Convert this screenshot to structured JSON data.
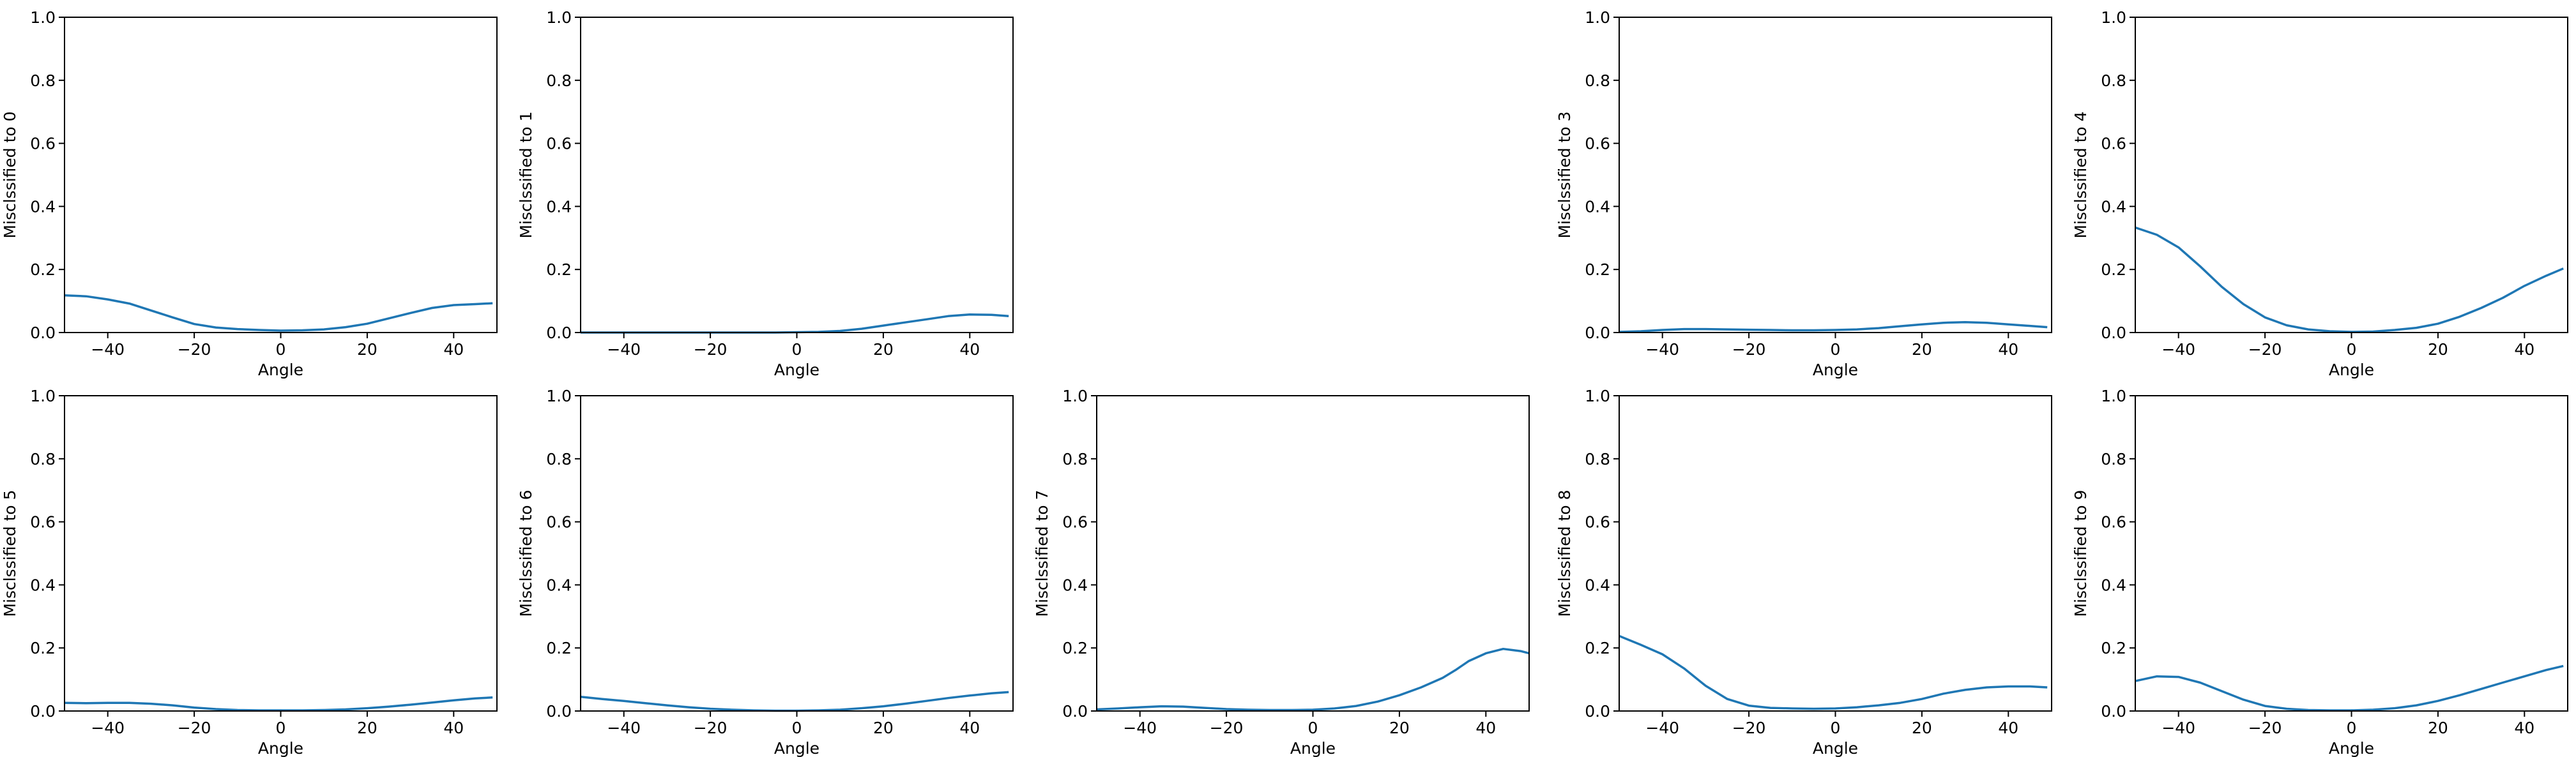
{
  "chart_data": [
    {
      "type": "line",
      "xlabel": "Angle",
      "ylabel": "Misclssified to 0",
      "xlim": [
        -50,
        50
      ],
      "ylim": [
        0,
        1
      ],
      "xticks": [
        "−40",
        "−20",
        "0",
        "20",
        "40"
      ],
      "yticks": [
        "0.0",
        "0.2",
        "0.4",
        "0.6",
        "0.8",
        "1.0"
      ],
      "series": [
        {
          "color": "#1f77b4",
          "x": [
            -50,
            -45,
            -40,
            -35,
            -30,
            -25,
            -20,
            -15,
            -10,
            -5,
            0,
            5,
            10,
            15,
            20,
            25,
            30,
            35,
            40,
            45,
            49
          ],
          "y": [
            0.118,
            0.115,
            0.105,
            0.092,
            0.07,
            0.048,
            0.027,
            0.016,
            0.011,
            0.008,
            0.006,
            0.007,
            0.01,
            0.017,
            0.028,
            0.045,
            0.062,
            0.078,
            0.087,
            0.09,
            0.093
          ]
        }
      ]
    },
    {
      "type": "line",
      "xlabel": "Angle",
      "ylabel": "Misclssified to 1",
      "xlim": [
        -50,
        50
      ],
      "ylim": [
        0,
        1
      ],
      "xticks": [
        "−40",
        "−20",
        "0",
        "20",
        "40"
      ],
      "yticks": [
        "0.0",
        "0.2",
        "0.4",
        "0.6",
        "0.8",
        "1.0"
      ],
      "series": [
        {
          "color": "#1f77b4",
          "x": [
            -50,
            -45,
            -40,
            -35,
            -30,
            -25,
            -20,
            -15,
            -10,
            -5,
            0,
            5,
            10,
            15,
            20,
            25,
            30,
            35,
            40,
            45,
            49
          ],
          "y": [
            0.0,
            0.0,
            0.0,
            0.0,
            0.0,
            0.0,
            0.0,
            0.0,
            0.0,
            0.0,
            0.001,
            0.002,
            0.005,
            0.012,
            0.022,
            0.032,
            0.042,
            0.052,
            0.057,
            0.056,
            0.052
          ]
        }
      ]
    },
    {
      "type": "line",
      "xlabel": "Angle",
      "ylabel": "Misclssified to 3",
      "xlim": [
        -50,
        50
      ],
      "ylim": [
        0,
        1
      ],
      "xticks": [
        "−40",
        "−20",
        "0",
        "20",
        "40"
      ],
      "yticks": [
        "0.0",
        "0.2",
        "0.4",
        "0.6",
        "0.8",
        "1.0"
      ],
      "series": [
        {
          "color": "#1f77b4",
          "x": [
            -50,
            -45,
            -40,
            -35,
            -30,
            -25,
            -20,
            -15,
            -10,
            -5,
            0,
            5,
            10,
            15,
            20,
            25,
            30,
            35,
            40,
            45,
            49
          ],
          "y": [
            0.002,
            0.004,
            0.008,
            0.011,
            0.011,
            0.01,
            0.009,
            0.008,
            0.007,
            0.007,
            0.008,
            0.01,
            0.014,
            0.02,
            0.026,
            0.031,
            0.033,
            0.031,
            0.026,
            0.021,
            0.017
          ]
        }
      ]
    },
    {
      "type": "line",
      "xlabel": "Angle",
      "ylabel": "Misclssified to 4",
      "xlim": [
        -50,
        50
      ],
      "ylim": [
        0,
        1
      ],
      "xticks": [
        "−40",
        "−20",
        "0",
        "20",
        "40"
      ],
      "yticks": [
        "0.0",
        "0.2",
        "0.4",
        "0.6",
        "0.8",
        "1.0"
      ],
      "series": [
        {
          "color": "#1f77b4",
          "x": [
            -50,
            -45,
            -40,
            -35,
            -30,
            -25,
            -20,
            -15,
            -10,
            -5,
            0,
            5,
            10,
            15,
            20,
            25,
            30,
            35,
            40,
            45,
            49
          ],
          "y": [
            0.333,
            0.31,
            0.27,
            0.21,
            0.145,
            0.09,
            0.048,
            0.023,
            0.01,
            0.004,
            0.002,
            0.003,
            0.008,
            0.015,
            0.028,
            0.05,
            0.078,
            0.11,
            0.148,
            0.18,
            0.203
          ]
        }
      ]
    },
    {
      "type": "line",
      "xlabel": "Angle",
      "ylabel": "Misclssified to 5",
      "xlim": [
        -50,
        50
      ],
      "ylim": [
        0,
        1
      ],
      "xticks": [
        "−40",
        "−20",
        "0",
        "20",
        "40"
      ],
      "yticks": [
        "0.0",
        "0.2",
        "0.4",
        "0.6",
        "0.8",
        "1.0"
      ],
      "series": [
        {
          "color": "#1f77b4",
          "x": [
            -50,
            -45,
            -40,
            -35,
            -30,
            -25,
            -20,
            -15,
            -10,
            -5,
            0,
            5,
            10,
            15,
            20,
            25,
            30,
            35,
            40,
            45,
            49
          ],
          "y": [
            0.026,
            0.025,
            0.026,
            0.026,
            0.023,
            0.018,
            0.011,
            0.006,
            0.003,
            0.002,
            0.002,
            0.002,
            0.003,
            0.005,
            0.009,
            0.014,
            0.02,
            0.027,
            0.034,
            0.04,
            0.043
          ]
        }
      ]
    },
    {
      "type": "line",
      "xlabel": "Angle",
      "ylabel": "Misclssified to 6",
      "xlim": [
        -50,
        50
      ],
      "ylim": [
        0,
        1
      ],
      "xticks": [
        "−40",
        "−20",
        "0",
        "20",
        "40"
      ],
      "yticks": [
        "0.0",
        "0.2",
        "0.4",
        "0.6",
        "0.8",
        "1.0"
      ],
      "series": [
        {
          "color": "#1f77b4",
          "x": [
            -50,
            -45,
            -40,
            -35,
            -30,
            -25,
            -20,
            -15,
            -10,
            -5,
            0,
            5,
            10,
            15,
            20,
            25,
            30,
            35,
            40,
            45,
            49
          ],
          "y": [
            0.045,
            0.038,
            0.032,
            0.025,
            0.018,
            0.012,
            0.007,
            0.004,
            0.002,
            0.001,
            0.001,
            0.002,
            0.004,
            0.009,
            0.015,
            0.023,
            0.032,
            0.041,
            0.049,
            0.056,
            0.06
          ]
        }
      ]
    },
    {
      "type": "line",
      "xlabel": "Angle",
      "ylabel": "Misclssified to 7",
      "xlim": [
        -50,
        50
      ],
      "ylim": [
        0,
        1
      ],
      "xticks": [
        "−40",
        "−20",
        "0",
        "20",
        "40"
      ],
      "yticks": [
        "0.0",
        "0.2",
        "0.4",
        "0.6",
        "0.8",
        "1.0"
      ],
      "series": [
        {
          "color": "#1f77b4",
          "x": [
            -50,
            -45,
            -40,
            -35,
            -30,
            -25,
            -20,
            -15,
            -10,
            -5,
            0,
            5,
            10,
            15,
            20,
            25,
            30,
            33,
            36,
            40,
            44,
            48,
            50
          ],
          "y": [
            0.005,
            0.008,
            0.012,
            0.015,
            0.014,
            0.01,
            0.006,
            0.004,
            0.003,
            0.003,
            0.004,
            0.008,
            0.016,
            0.03,
            0.05,
            0.075,
            0.105,
            0.13,
            0.158,
            0.183,
            0.197,
            0.19,
            0.183
          ]
        }
      ]
    },
    {
      "type": "line",
      "xlabel": "Angle",
      "ylabel": "Misclssified to 8",
      "xlim": [
        -50,
        50
      ],
      "ylim": [
        0,
        1
      ],
      "xticks": [
        "−40",
        "−20",
        "0",
        "20",
        "40"
      ],
      "yticks": [
        "0.0",
        "0.2",
        "0.4",
        "0.6",
        "0.8",
        "1.0"
      ],
      "series": [
        {
          "color": "#1f77b4",
          "x": [
            -50,
            -45,
            -40,
            -35,
            -30,
            -25,
            -20,
            -15,
            -10,
            -5,
            0,
            5,
            10,
            15,
            20,
            25,
            30,
            35,
            40,
            45,
            49
          ],
          "y": [
            0.238,
            0.21,
            0.18,
            0.135,
            0.08,
            0.038,
            0.017,
            0.01,
            0.008,
            0.007,
            0.008,
            0.012,
            0.018,
            0.026,
            0.038,
            0.055,
            0.067,
            0.075,
            0.078,
            0.078,
            0.075
          ]
        }
      ]
    },
    {
      "type": "line",
      "xlabel": "Angle",
      "ylabel": "Misclssified to 9",
      "xlim": [
        -50,
        50
      ],
      "ylim": [
        0,
        1
      ],
      "xticks": [
        "−40",
        "−20",
        "0",
        "20",
        "40"
      ],
      "yticks": [
        "0.0",
        "0.2",
        "0.4",
        "0.6",
        "0.8",
        "1.0"
      ],
      "series": [
        {
          "color": "#1f77b4",
          "x": [
            -50,
            -45,
            -40,
            -35,
            -30,
            -25,
            -20,
            -15,
            -10,
            -5,
            0,
            5,
            10,
            15,
            20,
            25,
            30,
            35,
            40,
            45,
            49
          ],
          "y": [
            0.095,
            0.11,
            0.108,
            0.09,
            0.063,
            0.036,
            0.016,
            0.007,
            0.003,
            0.002,
            0.002,
            0.004,
            0.009,
            0.018,
            0.032,
            0.05,
            0.07,
            0.09,
            0.11,
            0.13,
            0.143
          ]
        }
      ]
    }
  ]
}
